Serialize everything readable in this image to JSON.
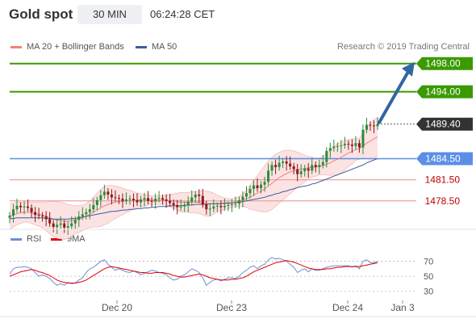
{
  "header": {
    "title": "Gold spot",
    "timeframe": "30 MIN",
    "time": "06:24:28 CET"
  },
  "legend": {
    "ma20_label": "MA 20 + Bollinger Bands",
    "ma50_label": "MA 50",
    "research": "Research © 2019 Trading Central",
    "ma20_color": "#f08080",
    "ma50_color": "#3a5f9a"
  },
  "rsi_legend": {
    "rsi_label": "RSI",
    "ma9_label": "9MA",
    "rsi_color": "#6b8fd6",
    "ma9_color": "#e00000"
  },
  "colors": {
    "resistance": "#3a9a00",
    "support": "#f0a0a0",
    "pivot": "#5b8fe6",
    "arrow": "#3465a4",
    "candle_up": "#2e8b3a",
    "candle_down": "#8b1a1a",
    "band_fill": "#fbe3e3"
  },
  "chart_data": [
    {
      "type": "candlestick",
      "ylim": [
        1474.0,
        1499.0
      ],
      "levels": [
        {
          "value": 1498.0,
          "label": "1498.00",
          "kind": "resistance"
        },
        {
          "value": 1494.0,
          "label": "1494.00",
          "kind": "resistance"
        },
        {
          "value": 1489.4,
          "label": "1489.40",
          "kind": "last"
        },
        {
          "value": 1484.5,
          "label": "1484.50",
          "kind": "pivot"
        },
        {
          "value": 1481.5,
          "label": "1481.50",
          "kind": "support"
        },
        {
          "value": 1478.5,
          "label": "1478.50",
          "kind": "support"
        }
      ],
      "x_ticks": [
        "Dec 20",
        "Dec 23",
        "Dec 24",
        "Jan 3"
      ],
      "close": [
        1476.4,
        1477.3,
        1477.8,
        1477.6,
        1477.7,
        1477.5,
        1476.9,
        1476.5,
        1476.4,
        1476.3,
        1475.9,
        1475.3,
        1474.8,
        1475.1,
        1475.3,
        1474.7,
        1474.9,
        1475.3,
        1475.8,
        1476.3,
        1476.6,
        1476.9,
        1477.3,
        1477.9,
        1478.6,
        1479.3,
        1479.8,
        1479.4,
        1479.0,
        1478.9,
        1478.8,
        1478.5,
        1478.7,
        1478.8,
        1478.6,
        1478.3,
        1478.7,
        1478.9,
        1478.5,
        1478.4,
        1478.8,
        1478.9,
        1478.7,
        1478.5,
        1478.2,
        1477.9,
        1477.6,
        1477.7,
        1477.9,
        1478.4,
        1479.0,
        1479.4,
        1479.2,
        1478.0,
        1477.3,
        1477.4,
        1477.7,
        1477.8,
        1477.6,
        1477.8,
        1477.9,
        1478.0,
        1478.1,
        1478.6,
        1479.1,
        1479.6,
        1480.2,
        1480.7,
        1480.3,
        1480.8,
        1481.2,
        1482.8,
        1483.6,
        1483.3,
        1483.9,
        1484.1,
        1483.8,
        1483.4,
        1483.0,
        1482.3,
        1482.7,
        1483.1,
        1482.8,
        1483.6,
        1483.3,
        1483.6,
        1484.0,
        1485.6,
        1486.0,
        1486.2,
        1486.3,
        1486.4,
        1486.6,
        1486.5,
        1486.3,
        1486.7,
        1486.1,
        1488.6,
        1489.3,
        1489.2,
        1489.1,
        1489.4
      ],
      "ma20": [
        1476.3,
        1476.5,
        1476.7,
        1476.8,
        1476.9,
        1476.9,
        1476.8,
        1476.7,
        1476.6,
        1476.5,
        1476.3,
        1476.1,
        1475.9,
        1475.8,
        1475.7,
        1475.6,
        1475.6,
        1475.7,
        1475.8,
        1475.9,
        1476.1,
        1476.3,
        1476.6,
        1476.9,
        1477.2,
        1477.5,
        1477.8,
        1478.0,
        1478.2,
        1478.3,
        1478.4,
        1478.4,
        1478.5,
        1478.5,
        1478.6,
        1478.6,
        1478.6,
        1478.6,
        1478.6,
        1478.6,
        1478.6,
        1478.6,
        1478.6,
        1478.6,
        1478.5,
        1478.5,
        1478.4,
        1478.3,
        1478.3,
        1478.3,
        1478.3,
        1478.3,
        1478.3,
        1478.2,
        1478.1,
        1478.1,
        1478.1,
        1478.1,
        1478.1,
        1478.1,
        1478.1,
        1478.2,
        1478.3,
        1478.4,
        1478.6,
        1478.8,
        1479.0,
        1479.3,
        1479.6,
        1479.9,
        1480.2,
        1480.6,
        1481.0,
        1481.4,
        1481.8,
        1482.1,
        1482.4,
        1482.6,
        1482.8,
        1482.9,
        1483.0,
        1483.1,
        1483.2,
        1483.3,
        1483.3,
        1483.4,
        1483.5,
        1483.7,
        1483.9,
        1484.2,
        1484.4,
        1484.7,
        1485.0,
        1485.3,
        1485.5,
        1485.8,
        1485.9,
        1486.3,
        1486.7,
        1487.0,
        1487.3,
        1487.6
      ],
      "ma50": [
        1476.0,
        1476.0,
        1476.1,
        1476.1,
        1476.1,
        1476.1,
        1476.1,
        1476.1,
        1476.1,
        1476.1,
        1476.0,
        1476.0,
        1475.9,
        1475.9,
        1475.9,
        1475.9,
        1475.9,
        1476.0,
        1476.0,
        1476.1,
        1476.2,
        1476.3,
        1476.4,
        1476.5,
        1476.6,
        1476.7,
        1476.8,
        1476.9,
        1477.0,
        1477.0,
        1477.1,
        1477.2,
        1477.2,
        1477.3,
        1477.3,
        1477.4,
        1477.4,
        1477.5,
        1477.5,
        1477.6,
        1477.6,
        1477.7,
        1477.7,
        1477.7,
        1477.8,
        1477.8,
        1477.8,
        1477.8,
        1477.9,
        1477.9,
        1477.9,
        1478.0,
        1478.0,
        1478.0,
        1478.0,
        1478.1,
        1478.1,
        1478.1,
        1478.1,
        1478.2,
        1478.2,
        1478.2,
        1478.3,
        1478.3,
        1478.4,
        1478.5,
        1478.6,
        1478.7,
        1478.8,
        1478.9,
        1479.0,
        1479.2,
        1479.3,
        1479.5,
        1479.6,
        1479.8,
        1479.9,
        1480.1,
        1480.2,
        1480.4,
        1480.5,
        1480.6,
        1480.7,
        1480.9,
        1481.0,
        1481.2,
        1481.4,
        1481.6,
        1481.8,
        1482.0,
        1482.2,
        1482.4,
        1482.6,
        1482.8,
        1483.0,
        1483.2,
        1483.4,
        1483.6,
        1483.9,
        1484.1,
        1484.3,
        1484.5
      ],
      "band_upper": [
        1478.1,
        1478.2,
        1478.3,
        1478.3,
        1478.3,
        1478.3,
        1478.3,
        1478.3,
        1478.3,
        1478.3,
        1478.3,
        1478.4,
        1478.4,
        1478.4,
        1478.3,
        1478.2,
        1478.0,
        1477.9,
        1477.8,
        1477.8,
        1477.9,
        1478.1,
        1478.5,
        1479.0,
        1479.6,
        1480.1,
        1480.5,
        1480.7,
        1480.7,
        1480.6,
        1480.5,
        1480.3,
        1480.1,
        1480.0,
        1479.8,
        1479.6,
        1479.5,
        1479.4,
        1479.3,
        1479.2,
        1479.2,
        1479.2,
        1479.2,
        1479.3,
        1479.4,
        1479.5,
        1479.6,
        1479.7,
        1479.7,
        1479.7,
        1479.8,
        1479.8,
        1479.9,
        1479.9,
        1479.9,
        1479.8,
        1479.6,
        1479.3,
        1479.1,
        1478.9,
        1478.8,
        1478.8,
        1478.9,
        1479.1,
        1479.5,
        1480.0,
        1480.7,
        1481.4,
        1482.1,
        1482.8,
        1483.5,
        1484.2,
        1484.7,
        1485.1,
        1485.4,
        1485.6,
        1485.7,
        1485.7,
        1485.6,
        1485.4,
        1485.2,
        1485.0,
        1484.8,
        1484.7,
        1484.6,
        1484.6,
        1484.8,
        1485.2,
        1485.7,
        1486.2,
        1486.6,
        1486.9,
        1487.1,
        1487.2,
        1487.3,
        1487.3,
        1487.4,
        1488.0,
        1488.9,
        1489.6,
        1490.1,
        1490.3
      ],
      "band_lower": [
        1474.5,
        1474.8,
        1475.1,
        1475.3,
        1475.5,
        1475.5,
        1475.3,
        1475.1,
        1474.9,
        1474.7,
        1474.3,
        1473.8,
        1473.4,
        1473.2,
        1473.1,
        1473.0,
        1473.2,
        1473.5,
        1473.8,
        1474.0,
        1474.3,
        1474.5,
        1474.7,
        1474.8,
        1474.8,
        1474.9,
        1475.1,
        1475.3,
        1475.7,
        1476.0,
        1476.3,
        1476.5,
        1476.9,
        1477.0,
        1477.4,
        1477.6,
        1477.7,
        1477.8,
        1477.9,
        1478.0,
        1478.0,
        1478.0,
        1478.0,
        1477.9,
        1477.6,
        1477.5,
        1477.2,
        1476.9,
        1476.9,
        1476.9,
        1476.8,
        1476.8,
        1476.7,
        1476.5,
        1476.3,
        1476.4,
        1476.6,
        1476.9,
        1477.1,
        1477.3,
        1477.4,
        1477.6,
        1477.7,
        1477.7,
        1477.7,
        1477.6,
        1477.3,
        1477.2,
        1477.1,
        1477.0,
        1476.9,
        1477.0,
        1477.3,
        1477.7,
        1478.2,
        1478.6,
        1479.1,
        1479.5,
        1480.0,
        1480.4,
        1480.8,
        1481.2,
        1481.6,
        1481.9,
        1482.0,
        1482.2,
        1482.2,
        1482.2,
        1482.1,
        1482.2,
        1482.2,
        1482.5,
        1482.9,
        1483.4,
        1483.7,
        1484.3,
        1484.4,
        1484.6,
        1484.5,
        1484.4,
        1484.5,
        1484.9
      ],
      "projection": [
        1489.4,
        1498.0
      ]
    },
    {
      "type": "line",
      "ylim": [
        20,
        90
      ],
      "y_ticks": [
        70,
        50,
        30
      ],
      "series": [
        {
          "name": "RSI",
          "values": [
            53,
            60,
            62,
            62,
            63,
            62,
            60,
            55,
            50,
            52,
            50,
            47,
            42,
            38,
            40,
            38,
            42,
            40,
            41,
            45,
            48,
            55,
            60,
            62,
            66,
            70,
            72,
            66,
            62,
            58,
            60,
            58,
            56,
            55,
            57,
            55,
            52,
            54,
            56,
            58,
            57,
            55,
            54,
            52,
            48,
            45,
            46,
            50,
            52,
            56,
            60,
            58,
            55,
            48,
            38,
            42,
            45,
            46,
            44,
            46,
            48,
            48,
            47,
            50,
            55,
            58,
            62,
            64,
            60,
            64,
            66,
            72,
            75,
            73,
            74,
            72,
            70,
            66,
            62,
            55,
            58,
            60,
            56,
            60,
            58,
            58,
            60,
            62,
            63,
            64,
            64,
            64,
            64,
            64,
            62,
            64,
            60,
            70,
            72,
            68,
            68,
            70
          ]
        },
        {
          "name": "9MA",
          "values": [
            50,
            52,
            54,
            56,
            57,
            58,
            59,
            58,
            56,
            55,
            53,
            51,
            48,
            45,
            43,
            42,
            41,
            41,
            41,
            42,
            43,
            45,
            48,
            51,
            54,
            57,
            60,
            62,
            63,
            62,
            61,
            60,
            59,
            58,
            57,
            56,
            55,
            55,
            54,
            54,
            55,
            55,
            55,
            54,
            53,
            51,
            50,
            49,
            49,
            50,
            51,
            52,
            53,
            52,
            50,
            48,
            47,
            46,
            45,
            45,
            45,
            46,
            46,
            47,
            48,
            50,
            53,
            56,
            58,
            60,
            62,
            64,
            66,
            68,
            69,
            70,
            71,
            70,
            69,
            67,
            65,
            63,
            61,
            60,
            59,
            59,
            59,
            60,
            60,
            61,
            62,
            62,
            63,
            63,
            63,
            63,
            63,
            64,
            65,
            66,
            67,
            68
          ]
        }
      ]
    }
  ]
}
